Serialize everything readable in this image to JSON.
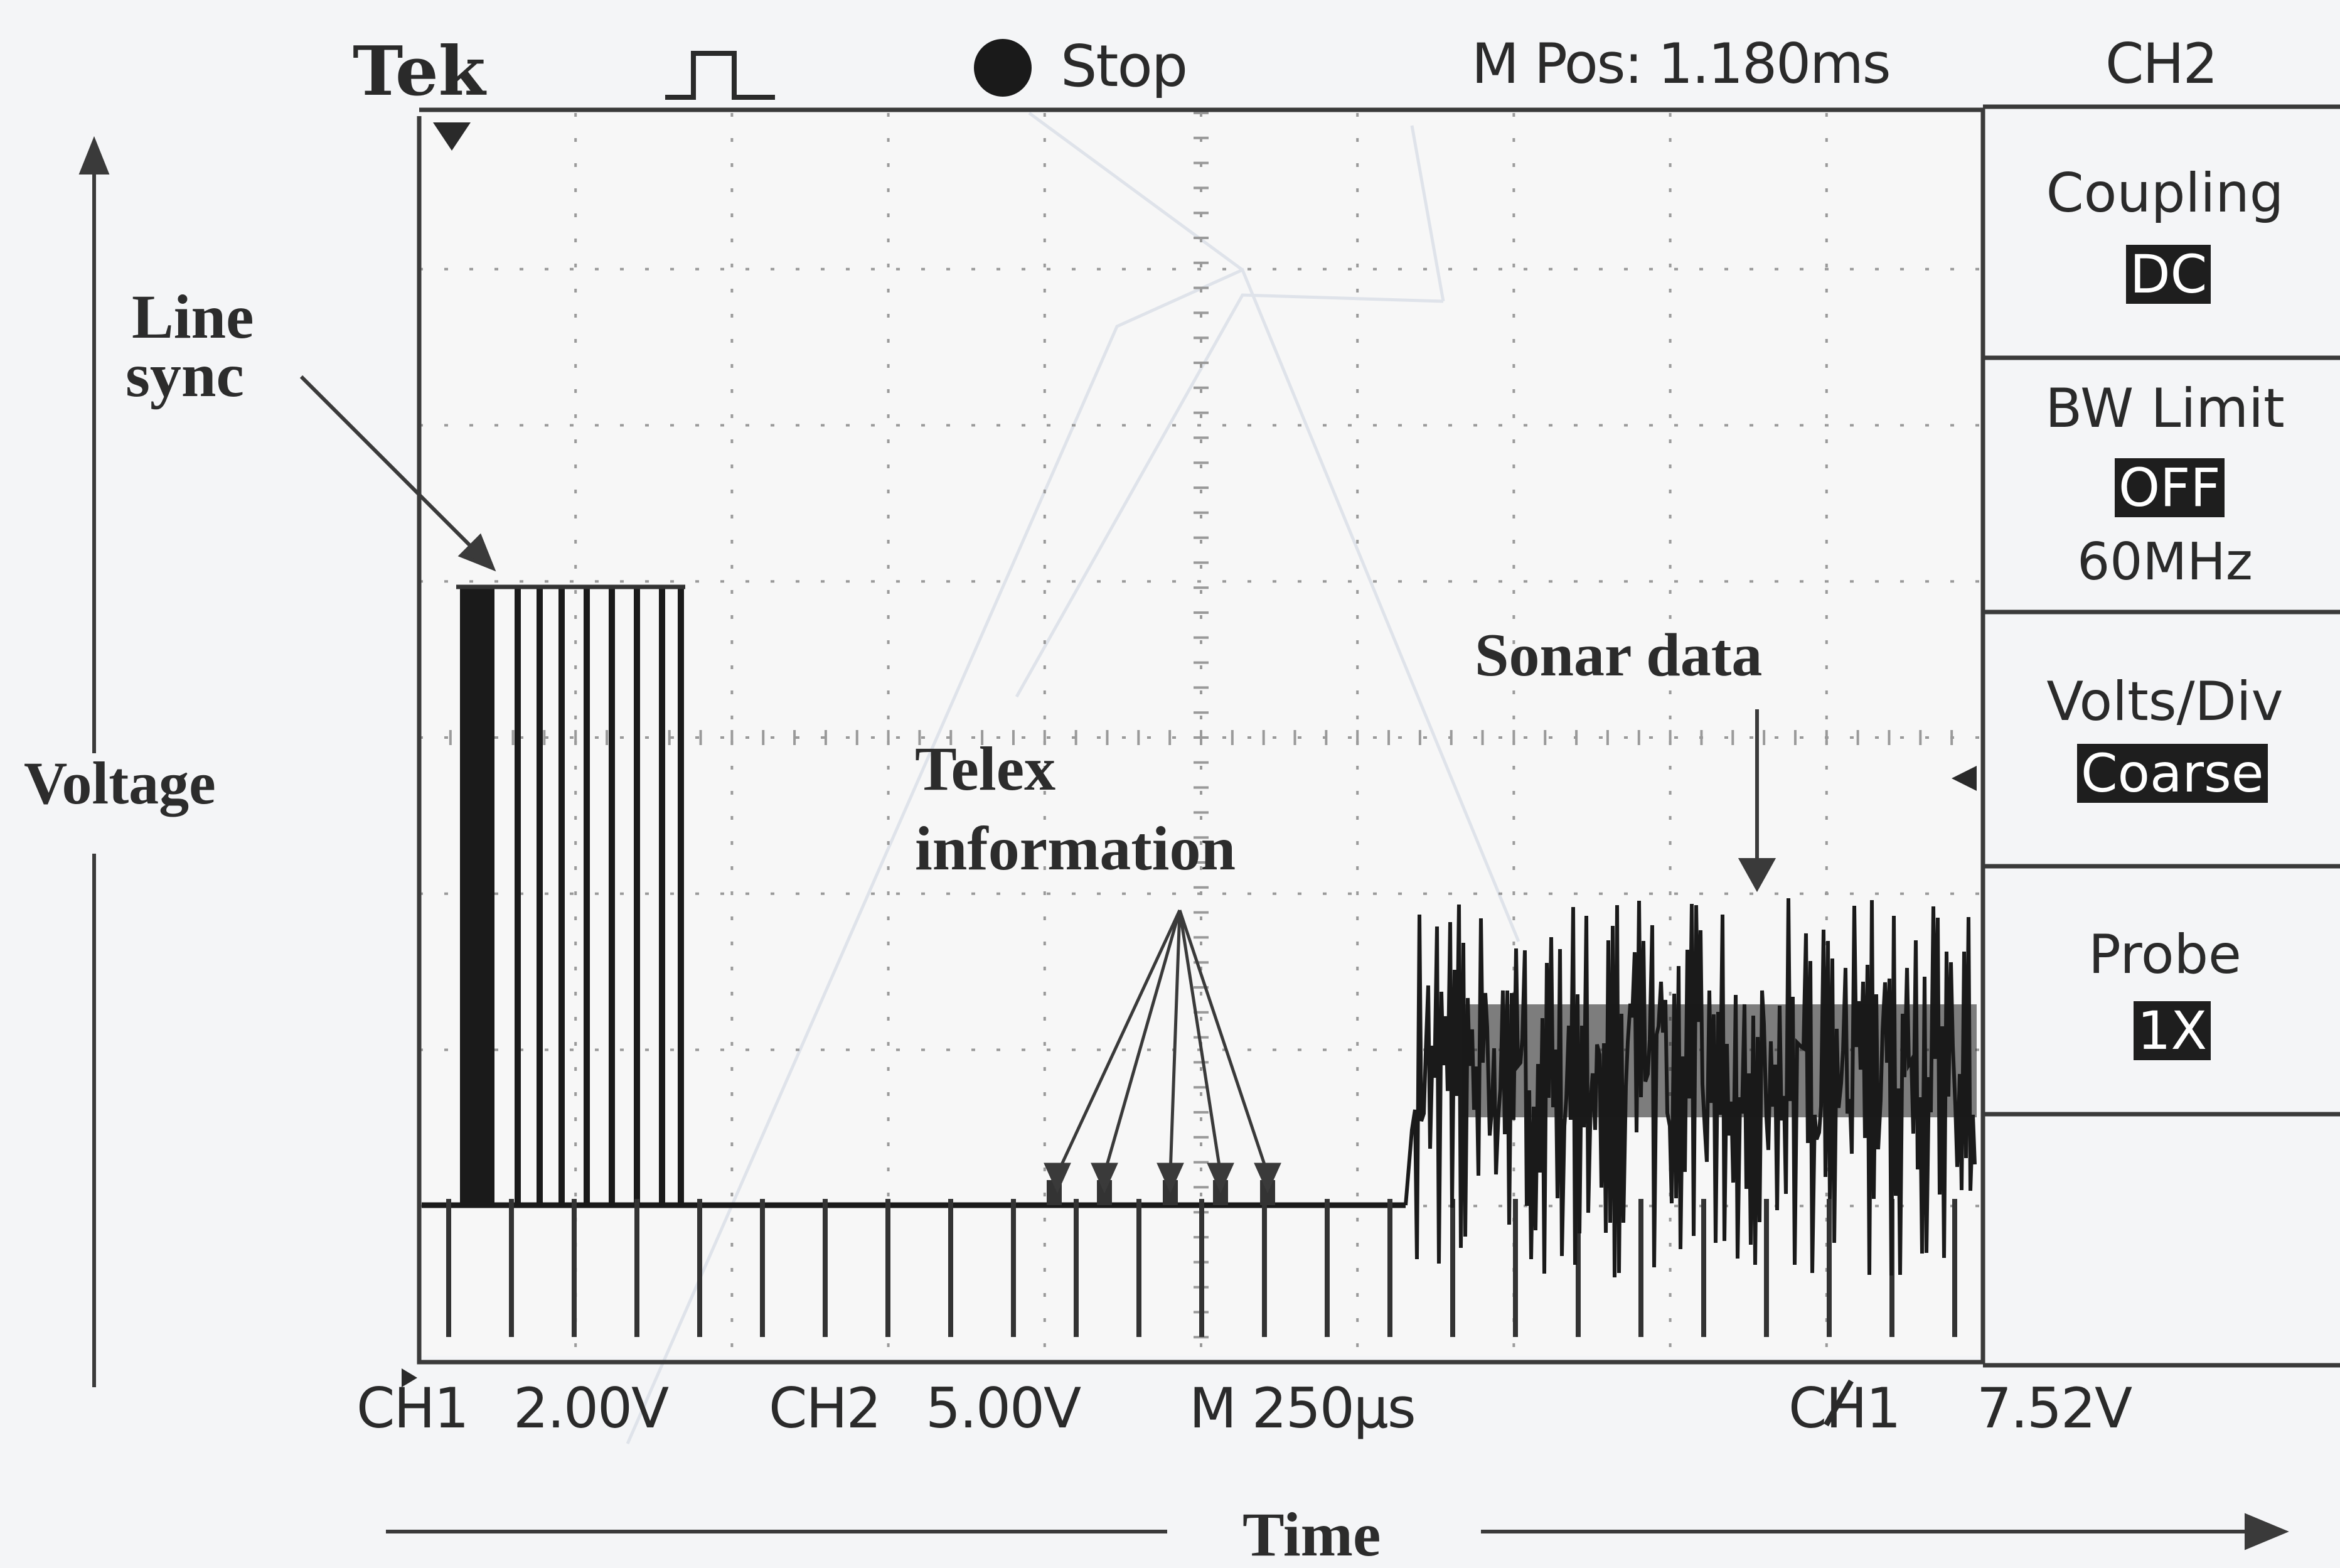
{
  "header": {
    "brand": "Tek",
    "trigger_icon": "pulse-trigger-icon",
    "run_state": "Stop",
    "position": "M Pos: 1.180ms",
    "channel": "CH2"
  },
  "side_menu": [
    {
      "title": "Coupling",
      "value": "DC"
    },
    {
      "title": "BW Limit",
      "value": "OFF",
      "subtitle": "60MHz"
    },
    {
      "title": "Volts/Div",
      "value": "Coarse"
    },
    {
      "title": "Probe",
      "value": "1X"
    }
  ],
  "status_bar": {
    "ch1_label": "CH1",
    "ch1_scale": "2.00V",
    "ch2_label": "CH2",
    "ch2_scale": "5.00V",
    "time_scale": "M 250µs",
    "trigger_source": "CH1",
    "trigger_level": "7.52V"
  },
  "annotations": {
    "line_sync": [
      "Line",
      "sync"
    ],
    "telex": [
      "Telex",
      "information"
    ],
    "sonar": "Sonar data",
    "y_axis": "Voltage",
    "x_axis": "Time"
  },
  "colors": {
    "background": "#f4f5f7",
    "screen": "#f7f7f7",
    "trace": "#1a1a1a",
    "grid": "#9a9a9a",
    "highlight_bg": "#1e1e1e"
  }
}
